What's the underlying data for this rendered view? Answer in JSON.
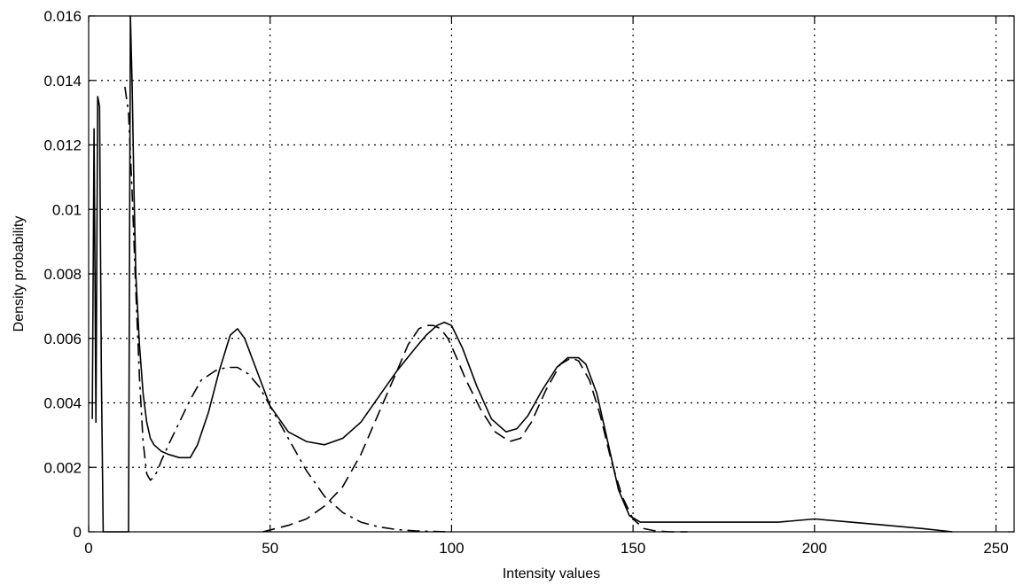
{
  "chart_data": {
    "type": "line",
    "xlabel": "Intensity values",
    "ylabel": "Density probability",
    "xlim": [
      0,
      255
    ],
    "ylim": [
      0,
      0.016
    ],
    "xticks": [
      0,
      50,
      100,
      150,
      200,
      250
    ],
    "yticks": [
      0,
      0.002,
      0.004,
      0.006,
      0.008,
      0.01,
      0.012,
      0.014,
      0.016
    ],
    "xtick_labels": [
      "0",
      "50",
      "100",
      "150",
      "200",
      "250"
    ],
    "ytick_labels": [
      "0",
      "0.002",
      "0.004",
      "0.006",
      "0.008",
      "0.01",
      "0.012",
      "0.014",
      "0.016"
    ],
    "grid": true,
    "series": [
      {
        "style": "solid",
        "x": [
          1,
          1.5,
          2,
          2.5,
          3,
          3.5,
          4,
          5,
          6,
          7,
          8,
          9,
          10,
          11,
          11.5,
          12,
          12.5,
          13,
          14,
          15,
          16,
          17,
          18,
          20,
          22,
          25,
          28,
          30,
          33,
          36,
          39,
          41,
          43,
          46,
          50,
          55,
          60,
          65,
          70,
          75,
          80,
          85,
          90,
          93,
          96,
          98,
          100,
          103,
          107,
          111,
          115,
          118,
          121,
          125,
          129,
          132,
          135,
          137,
          140,
          143,
          146,
          149,
          152,
          155,
          160,
          170,
          180,
          190,
          200,
          210,
          220,
          230,
          238
        ],
        "y": [
          0.0035,
          0.0125,
          0.0034,
          0.0135,
          0.0132,
          0.005,
          0,
          0,
          0,
          0,
          0,
          0,
          0,
          0,
          0.016,
          0.0138,
          0.0105,
          0.008,
          0.0058,
          0.0043,
          0.0034,
          0.0029,
          0.0027,
          0.0025,
          0.0024,
          0.0023,
          0.0023,
          0.0027,
          0.0037,
          0.005,
          0.0061,
          0.0063,
          0.006,
          0.0051,
          0.0039,
          0.0031,
          0.0028,
          0.0027,
          0.0029,
          0.0034,
          0.0042,
          0.005,
          0.0057,
          0.0061,
          0.0064,
          0.0065,
          0.0064,
          0.0057,
          0.0045,
          0.0035,
          0.0031,
          0.0032,
          0.0036,
          0.0044,
          0.0051,
          0.0054,
          0.0054,
          0.0052,
          0.0043,
          0.0028,
          0.0013,
          0.0005,
          0.0003,
          0.0003,
          0.0003,
          0.0003,
          0.0003,
          0.0003,
          0.0004,
          0.0003,
          0.0002,
          0.0001,
          0
        ]
      },
      {
        "style": "dashdot",
        "x": [
          10,
          11,
          12,
          13,
          14,
          15,
          16,
          17,
          18,
          19,
          20,
          22,
          25,
          28,
          31,
          35,
          38,
          41,
          44,
          47,
          50,
          55,
          60,
          65,
          70,
          75,
          80,
          85,
          90,
          95,
          100
        ],
        "y": [
          0.0138,
          0.013,
          0.0105,
          0.0075,
          0.0048,
          0.0028,
          0.0018,
          0.0016,
          0.0017,
          0.0019,
          0.0022,
          0.0027,
          0.0034,
          0.0041,
          0.0047,
          0.005,
          0.0051,
          0.0051,
          0.0049,
          0.0045,
          0.0039,
          0.0029,
          0.0019,
          0.0011,
          0.0006,
          0.0003,
          0.00015,
          7e-05,
          3e-05,
          1e-05,
          0
        ]
      },
      {
        "style": "dashed",
        "x": [
          48,
          55,
          60,
          65,
          70,
          75,
          80,
          85,
          88,
          91,
          93,
          95,
          97,
          99,
          101,
          104,
          108,
          112,
          116,
          119,
          122,
          126,
          130,
          133,
          135,
          138,
          141,
          144,
          147,
          150,
          153,
          156,
          160,
          165
        ],
        "y": [
          0,
          0.0002,
          0.0004,
          0.0008,
          0.0014,
          0.0024,
          0.0037,
          0.005,
          0.0058,
          0.0063,
          0.0064,
          0.0064,
          0.0063,
          0.006,
          0.0055,
          0.0047,
          0.0038,
          0.0031,
          0.0028,
          0.0029,
          0.0034,
          0.0044,
          0.0052,
          0.0054,
          0.0053,
          0.0047,
          0.0036,
          0.0022,
          0.0011,
          0.0004,
          0.0001,
          3e-05,
          0,
          0
        ]
      }
    ]
  }
}
